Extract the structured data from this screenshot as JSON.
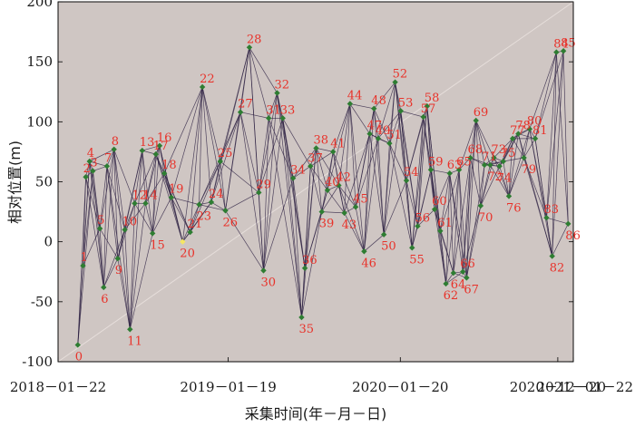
{
  "chart_data": {
    "type": "scatter",
    "xlabel": "采集时间(年－月－日)",
    "ylabel": "相对位置(m)",
    "ylim": [
      -100,
      200
    ],
    "yticks": [
      -100,
      -50,
      0,
      50,
      100,
      150,
      200
    ],
    "xlim": [
      "2018-01-22",
      "2021-01-22"
    ],
    "xticks": [
      {
        "date": "2018-01-22",
        "label": "2018－01－22"
      },
      {
        "date": "2019-01-19",
        "label": "2019－01－19"
      },
      {
        "date": "2020-01-20",
        "label": "2020－01－20"
      },
      {
        "date": "2020-12-20",
        "label": "2020－12－20"
      },
      {
        "date": "2021-01-22",
        "label": "2021－01－22"
      }
    ],
    "background": "#cfc6c3",
    "marker_color": "#2e7d32",
    "highlight_color": "#f5e663",
    "label_color": "#e8322a",
    "line_color": "#2e2244",
    "reference_line_color": "#e6dedb",
    "grid": false,
    "points": [
      {
        "label": "0",
        "date": "2018-03-05",
        "y": -86
      },
      {
        "label": "1",
        "date": "2018-03-16",
        "y": -20
      },
      {
        "label": "2",
        "date": "2018-03-22",
        "y": 54
      },
      {
        "label": "3",
        "date": "2018-04-06",
        "y": 59
      },
      {
        "label": "4",
        "date": "2018-03-30",
        "y": 67
      },
      {
        "label": "5",
        "date": "2018-04-21",
        "y": 11
      },
      {
        "label": "6",
        "date": "2018-04-29",
        "y": -38
      },
      {
        "label": "7",
        "date": "2018-05-06",
        "y": 63
      },
      {
        "label": "8",
        "date": "2018-05-21",
        "y": 77
      },
      {
        "label": "9",
        "date": "2018-05-29",
        "y": -14
      },
      {
        "label": "10",
        "date": "2018-06-13",
        "y": 10
      },
      {
        "label": "11",
        "date": "2018-06-24",
        "y": -73
      },
      {
        "label": "12",
        "date": "2018-07-04",
        "y": 32
      },
      {
        "label": "13",
        "date": "2018-07-20",
        "y": 76
      },
      {
        "label": "14",
        "date": "2018-07-27",
        "y": 32
      },
      {
        "label": "15",
        "date": "2018-08-11",
        "y": 7
      },
      {
        "label": "16",
        "date": "2018-08-26",
        "y": 80
      },
      {
        "label": "17",
        "date": "2018-08-18",
        "y": 73
      },
      {
        "label": "18",
        "date": "2018-09-05",
        "y": 57
      },
      {
        "label": "19",
        "date": "2018-09-20",
        "y": 37
      },
      {
        "label": "20",
        "date": "2018-10-14",
        "y": 0
      },
      {
        "label": "21",
        "date": "2018-10-30",
        "y": 8
      },
      {
        "label": "22",
        "date": "2018-11-25",
        "y": 129
      },
      {
        "label": "23",
        "date": "2018-11-18",
        "y": 31
      },
      {
        "label": "24",
        "date": "2018-12-14",
        "y": 33
      },
      {
        "label": "25",
        "date": "2019-01-02",
        "y": 67
      },
      {
        "label": "26",
        "date": "2019-01-13",
        "y": 26
      },
      {
        "label": "27",
        "date": "2019-02-14",
        "y": 108
      },
      {
        "label": "28",
        "date": "2019-03-05",
        "y": 162
      },
      {
        "label": "29",
        "date": "2019-03-25",
        "y": 41
      },
      {
        "label": "30",
        "date": "2019-04-04",
        "y": -24
      },
      {
        "label": "31",
        "date": "2019-04-15",
        "y": 103
      },
      {
        "label": "32",
        "date": "2019-05-03",
        "y": 124
      },
      {
        "label": "33",
        "date": "2019-05-15",
        "y": 103
      },
      {
        "label": "34",
        "date": "2019-06-06",
        "y": 53
      },
      {
        "label": "35",
        "date": "2019-06-24",
        "y": -63
      },
      {
        "label": "36",
        "date": "2019-07-01",
        "y": -22
      },
      {
        "label": "37",
        "date": "2019-07-13",
        "y": 63
      },
      {
        "label": "38",
        "date": "2019-07-25",
        "y": 78
      },
      {
        "label": "39",
        "date": "2019-08-06",
        "y": 25
      },
      {
        "label": "40",
        "date": "2019-08-18",
        "y": 43
      },
      {
        "label": "41",
        "date": "2019-08-30",
        "y": 75
      },
      {
        "label": "42",
        "date": "2019-09-11",
        "y": 47
      },
      {
        "label": "43",
        "date": "2019-09-23",
        "y": 24
      },
      {
        "label": "44",
        "date": "2019-10-05",
        "y": 115
      },
      {
        "label": "45",
        "date": "2019-10-17",
        "y": 29
      },
      {
        "label": "46",
        "date": "2019-11-04",
        "y": -8
      },
      {
        "label": "47",
        "date": "2019-11-16",
        "y": 90
      },
      {
        "label": "48",
        "date": "2019-11-25",
        "y": 111
      },
      {
        "label": "49",
        "date": "2019-12-04",
        "y": 86
      },
      {
        "label": "50",
        "date": "2019-12-16",
        "y": 6
      },
      {
        "label": "51",
        "date": "2019-12-28",
        "y": 82
      },
      {
        "label": "52",
        "date": "2020-01-09",
        "y": 133
      },
      {
        "label": "53",
        "date": "2020-01-21",
        "y": 109
      },
      {
        "label": "54",
        "date": "2020-02-02",
        "y": 51
      },
      {
        "label": "55",
        "date": "2020-02-14",
        "y": -5
      },
      {
        "label": "56",
        "date": "2020-02-26",
        "y": 13
      },
      {
        "label": "57",
        "date": "2020-03-09",
        "y": 104
      },
      {
        "label": "58",
        "date": "2020-03-17",
        "y": 113
      },
      {
        "label": "59",
        "date": "2020-03-25",
        "y": 60
      },
      {
        "label": "60",
        "date": "2020-04-02",
        "y": 27
      },
      {
        "label": "61",
        "date": "2020-04-14",
        "y": 9
      },
      {
        "label": "62",
        "date": "2020-04-26",
        "y": -35
      },
      {
        "label": "63",
        "date": "2020-05-04",
        "y": 57
      },
      {
        "label": "64",
        "date": "2020-05-12",
        "y": -26
      },
      {
        "label": "65",
        "date": "2020-05-24",
        "y": 60
      },
      {
        "label": "66",
        "date": "2020-06-01",
        "y": -25
      },
      {
        "label": "67",
        "date": "2020-06-09",
        "y": -30
      },
      {
        "label": "68",
        "date": "2020-06-17",
        "y": 70
      },
      {
        "label": "69",
        "date": "2020-06-29",
        "y": 101
      },
      {
        "label": "70",
        "date": "2020-07-09",
        "y": 30
      },
      {
        "label": "71",
        "date": "2020-07-17",
        "y": 64
      },
      {
        "label": "72",
        "date": "2020-07-29",
        "y": 64
      },
      {
        "label": "73",
        "date": "2020-08-06",
        "y": 70
      },
      {
        "label": "74",
        "date": "2020-08-18",
        "y": 63
      },
      {
        "label": "75",
        "date": "2020-08-26",
        "y": 67
      },
      {
        "label": "76",
        "date": "2020-09-07",
        "y": 38
      },
      {
        "label": "77",
        "date": "2020-09-15",
        "y": 86
      },
      {
        "label": "78",
        "date": "2020-09-27",
        "y": 90
      },
      {
        "label": "79",
        "date": "2020-10-09",
        "y": 70
      },
      {
        "label": "80",
        "date": "2020-10-21",
        "y": 94
      },
      {
        "label": "81",
        "date": "2020-11-02",
        "y": 86
      },
      {
        "label": "82",
        "date": "2020-12-08",
        "y": -12
      },
      {
        "label": "83",
        "date": "2020-11-26",
        "y": 20
      },
      {
        "label": "84",
        "date": "2020-12-17",
        "y": 158
      },
      {
        "label": "85",
        "date": "2021-01-01",
        "y": 159
      },
      {
        "label": "86",
        "date": "2021-01-11",
        "y": 15
      }
    ]
  }
}
